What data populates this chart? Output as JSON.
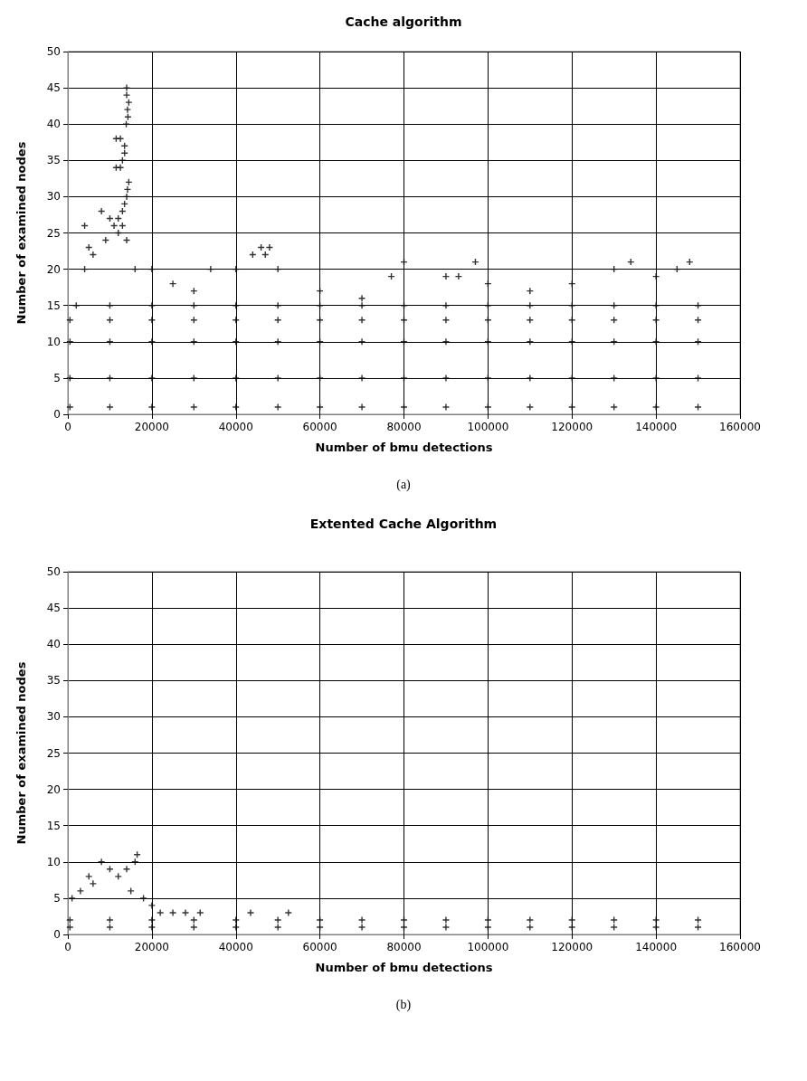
{
  "chart_data": [
    {
      "type": "scatter",
      "title": "Cache algorithm",
      "xlabel": "Number of bmu detections",
      "ylabel": "Number of examined nodes",
      "annotations": [
        "(a)"
      ],
      "xlim": [
        0,
        160000
      ],
      "xticks": [
        0,
        20000,
        40000,
        60000,
        80000,
        100000,
        120000,
        140000,
        160000
      ],
      "ylim": [
        0,
        50
      ],
      "yticks": [
        0,
        5,
        10,
        15,
        20,
        25,
        30,
        35,
        40,
        45,
        50
      ],
      "grid": true,
      "marker": "cross",
      "series": [
        {
          "color": "#000000",
          "x": [
            14000,
            14000,
            14500,
            14200,
            14300,
            13900,
            11500,
            12500,
            13500,
            13500,
            13000,
            11500,
            12500,
            14500,
            14200,
            14000,
            13500,
            13000,
            8000,
            12000,
            10000,
            4000,
            11000,
            13000,
            12000,
            9000,
            14000,
            6000,
            5000,
            4000,
            16000,
            20000,
            34000,
            40000,
            44000,
            46000,
            48000,
            47000,
            50000,
            80000,
            97000,
            77000,
            90000,
            93000,
            100000,
            110000,
            120000,
            130000,
            134000,
            140000,
            148000,
            145000,
            60000,
            70000,
            25000,
            30000
          ],
          "values": [
            45,
            44,
            43,
            42,
            41,
            40,
            38,
            38,
            37,
            36,
            35,
            34,
            34,
            32,
            31,
            30,
            29,
            28,
            28,
            27,
            27,
            26,
            26,
            26,
            25,
            24,
            24,
            22,
            23,
            20,
            20,
            20,
            20,
            20,
            22,
            23,
            23,
            22,
            20,
            21,
            21,
            19,
            19,
            19,
            18,
            17,
            18,
            20,
            21,
            19,
            21,
            20,
            17,
            16,
            18,
            17
          ]
        },
        {
          "color": "#000000",
          "x": [
            500,
            10000,
            20000,
            30000,
            40000,
            50000,
            60000,
            70000,
            80000,
            90000,
            100000,
            110000,
            120000,
            130000,
            140000,
            150000
          ],
          "values": [
            1,
            1,
            1,
            1,
            1,
            1,
            1,
            1,
            1,
            1,
            1,
            1,
            1,
            1,
            1,
            1
          ]
        },
        {
          "color": "#000000",
          "x": [
            500,
            10000,
            20000,
            30000,
            40000,
            50000,
            60000,
            70000,
            80000,
            90000,
            100000,
            110000,
            120000,
            130000,
            140000,
            150000
          ],
          "values": [
            5,
            5,
            5,
            5,
            5,
            5,
            5,
            5,
            5,
            5,
            5,
            5,
            5,
            5,
            5,
            5
          ]
        },
        {
          "color": "#000000",
          "x": [
            500,
            10000,
            20000,
            30000,
            40000,
            50000,
            60000,
            70000,
            80000,
            90000,
            100000,
            110000,
            120000,
            130000,
            140000,
            150000
          ],
          "values": [
            10,
            10,
            10,
            10,
            10,
            10,
            10,
            10,
            10,
            10,
            10,
            10,
            10,
            10,
            10,
            10
          ]
        },
        {
          "color": "#000000",
          "x": [
            500,
            10000,
            20000,
            30000,
            40000,
            50000,
            60000,
            70000,
            80000,
            90000,
            100000,
            110000,
            120000,
            130000,
            140000,
            150000
          ],
          "values": [
            13,
            13,
            13,
            13,
            13,
            13,
            13,
            13,
            13,
            13,
            13,
            13,
            13,
            13,
            13,
            13
          ]
        },
        {
          "color": "#000000",
          "x": [
            2000,
            10000,
            20000,
            30000,
            40000,
            50000,
            60000,
            70000,
            80000,
            90000,
            100000,
            110000,
            120000,
            130000,
            140000,
            150000
          ],
          "values": [
            15,
            15,
            15,
            15,
            15,
            15,
            15,
            15,
            15,
            15,
            15,
            15,
            15,
            15,
            15,
            15
          ]
        }
      ]
    },
    {
      "type": "scatter",
      "title": "Extented Cache Algorithm",
      "xlabel": "Number of bmu detections",
      "ylabel": "Number of examined nodes",
      "annotations": [
        "(b)"
      ],
      "xlim": [
        0,
        160000
      ],
      "xticks": [
        0,
        20000,
        40000,
        60000,
        80000,
        100000,
        120000,
        140000,
        160000
      ],
      "ylim": [
        0,
        50
      ],
      "yticks": [
        0,
        5,
        10,
        15,
        20,
        25,
        30,
        35,
        40,
        45,
        50
      ],
      "grid": true,
      "marker": "cross",
      "series": [
        {
          "color": "#000000",
          "x": [
            16500,
            16000,
            8000,
            5000,
            3000,
            1000,
            18000,
            22000,
            25000,
            28000,
            31500,
            43500,
            52500,
            10000,
            14000,
            12000,
            20000,
            6000,
            15000
          ],
          "values": [
            11,
            10,
            10,
            8,
            6,
            5,
            5,
            3,
            3,
            3,
            3,
            3,
            3,
            9,
            9,
            8,
            4,
            7,
            6
          ]
        },
        {
          "color": "#000000",
          "x": [
            500,
            10000,
            20000,
            30000,
            40000,
            50000,
            60000,
            70000,
            80000,
            90000,
            100000,
            110000,
            120000,
            130000,
            140000,
            150000
          ],
          "values": [
            1,
            1,
            1,
            1,
            1,
            1,
            1,
            1,
            1,
            1,
            1,
            1,
            1,
            1,
            1,
            1
          ]
        },
        {
          "color": "#000000",
          "x": [
            500,
            10000,
            20000,
            30000,
            40000,
            50000,
            60000,
            70000,
            80000,
            90000,
            100000,
            110000,
            120000,
            130000,
            140000,
            150000
          ],
          "values": [
            2,
            2,
            2,
            2,
            2,
            2,
            2,
            2,
            2,
            2,
            2,
            2,
            2,
            2,
            2,
            2
          ]
        }
      ]
    }
  ]
}
